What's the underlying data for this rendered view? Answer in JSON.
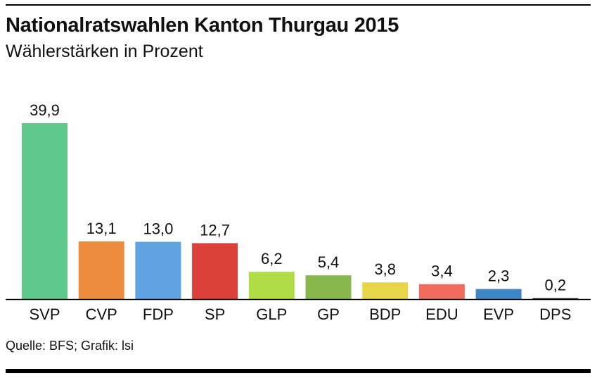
{
  "header": {
    "title": "Nationalratswahlen Kanton Thurgau 2015",
    "subtitle": "Wählerstärken in Prozent"
  },
  "footer": {
    "source": "Quelle: BFS; Grafik: lsi"
  },
  "chart_data": {
    "type": "bar",
    "title": "Nationalratswahlen Kanton Thurgau 2015",
    "subtitle": "Wählerstärken in Prozent",
    "xlabel": "",
    "ylabel": "",
    "ylim": [
      0,
      39.9
    ],
    "grid": false,
    "legend": "none",
    "categories": [
      "SVP",
      "CVP",
      "FDP",
      "SP",
      "GLP",
      "GP",
      "BDP",
      "EDU",
      "EVP",
      "DPS"
    ],
    "values": [
      39.9,
      13.1,
      13.0,
      12.7,
      6.2,
      5.4,
      3.8,
      3.4,
      2.3,
      0.2
    ],
    "labels": [
      "39,9",
      "13,1",
      "13,0",
      "12,7",
      "6,2",
      "5,4",
      "3,8",
      "3,4",
      "2,3",
      "0,2"
    ],
    "colors": [
      "#5ec98a",
      "#ec8a3e",
      "#5fa3e0",
      "#db4139",
      "#b0dc45",
      "#88b84b",
      "#e8d64a",
      "#f06c5c",
      "#3f87c4",
      "#222222"
    ]
  }
}
